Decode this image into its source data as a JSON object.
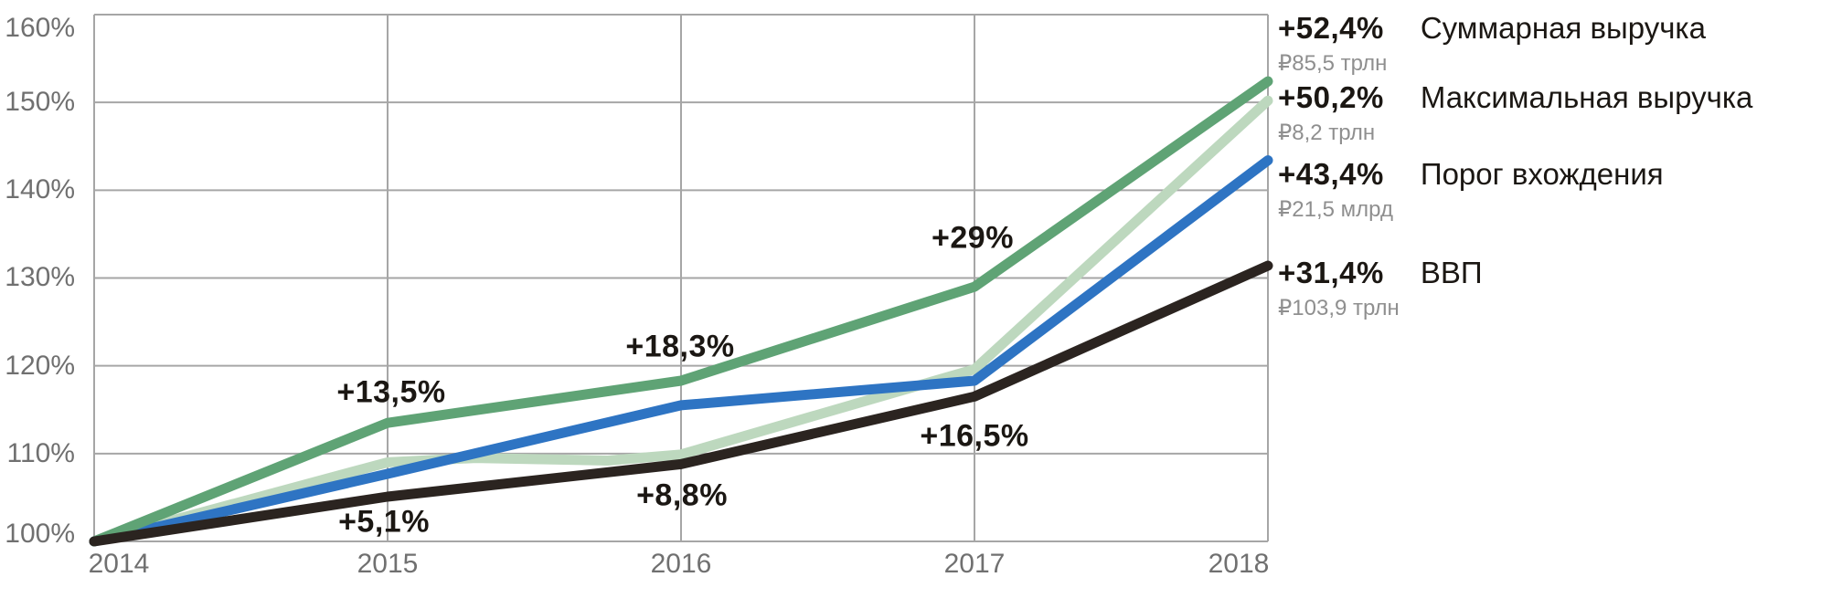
{
  "chart_data": {
    "type": "line",
    "title": "",
    "xlabel": "",
    "ylabel": "",
    "x": [
      2014,
      2015,
      2016,
      2017,
      2018
    ],
    "x_ticks": [
      "2014",
      "2015",
      "2016",
      "2017",
      "2018"
    ],
    "y_ticks": [
      "160%",
      "150%",
      "140%",
      "130%",
      "120%",
      "110%",
      "100%"
    ],
    "ylim": [
      100,
      160
    ],
    "grid": true,
    "legend_position": "right",
    "series": [
      {
        "name": "Суммарная выручка",
        "color": "#5FA375",
        "values": [
          100,
          113.5,
          118.3,
          129.0,
          152.4
        ]
      },
      {
        "name": "Максимальная выручка",
        "color": "#BDD8BE",
        "values": [
          100,
          109.0,
          109.9,
          119.6,
          150.2
        ],
        "detail_points": [
          [
            2014,
            100
          ],
          [
            2015,
            109.0
          ],
          [
            2015.3,
            109.5
          ],
          [
            2015.75,
            109.2
          ],
          [
            2016,
            109.9
          ],
          [
            2017,
            119.6
          ],
          [
            2018,
            150.2
          ]
        ]
      },
      {
        "name": "Порог вхождения",
        "color": "#2E74C3",
        "values": [
          100,
          107.7,
          115.5,
          118.3,
          143.4
        ]
      },
      {
        "name": "ВВП",
        "color": "#2B2420",
        "values": [
          100,
          105.1,
          108.8,
          116.5,
          131.4
        ]
      }
    ],
    "annotations": [
      {
        "text": "+13,5%",
        "series": "Суммарная выручка",
        "year": 2015
      },
      {
        "text": "+5,1%",
        "series": "ВВП",
        "year": 2015
      },
      {
        "text": "+18,3%",
        "series": "Суммарная выручка",
        "year": 2016
      },
      {
        "text": "+8,8%",
        "series": "ВВП",
        "year": 2016
      },
      {
        "text": "+29%",
        "series": "Суммарная выручка",
        "year": 2017
      },
      {
        "text": "+16,5%",
        "series": "ВВП",
        "year": 2017
      }
    ]
  },
  "legend": {
    "entries": [
      {
        "pct": "+52,4%",
        "label": "Суммарная выручка",
        "sub": "₽85,5 трлн"
      },
      {
        "pct": "+50,2%",
        "label": "Максимальная выручка",
        "sub": "₽8,2 трлн"
      },
      {
        "pct": "+43,4%",
        "label": "Порог вхождения",
        "sub": "₽21,5 млрд"
      },
      {
        "pct": "+31,4%",
        "label": "ВВП",
        "sub": "₽103,9 трлн"
      }
    ]
  },
  "colors": {
    "grid": "#A6A6A6",
    "tick_text": "#707070",
    "annotation_text": "#1B1713",
    "legend_sub_text": "#8F8F8F",
    "background": "#FFFFFF"
  }
}
